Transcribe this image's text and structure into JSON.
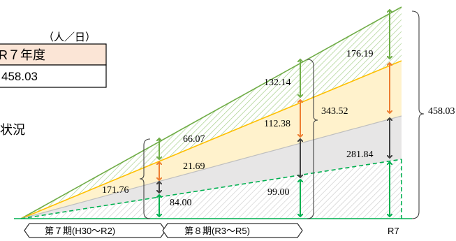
{
  "table": {
    "unit": "（人／日）",
    "header": "R７年度",
    "value": "458.03"
  },
  "side_text": "状況",
  "colors": {
    "green": "#70ad47",
    "orange": "#ed7d31",
    "dark_gray": "#404040",
    "bright_green": "#2ca02c",
    "gold": "#ffc000",
    "yellow_fill": "#fff2cc",
    "gray_fill": "#e7e6e6",
    "header_fill": "#fbe5d6"
  },
  "labels": {
    "p1_green": "66.07",
    "p1_orange": "21.69",
    "p1_base": "84.00",
    "p1_total": "171.76",
    "p2_green": "132.14",
    "p2_orange": "112.38",
    "p2_base": "99.00",
    "p2_total": "343.52",
    "r7_green": "176.19",
    "r7_mid": "281.84",
    "r7_total": "458.03"
  },
  "periods": {
    "p1": "第７期(H30～R2)",
    "p2": "第８期(R3～R5)",
    "r7": "R7"
  }
}
